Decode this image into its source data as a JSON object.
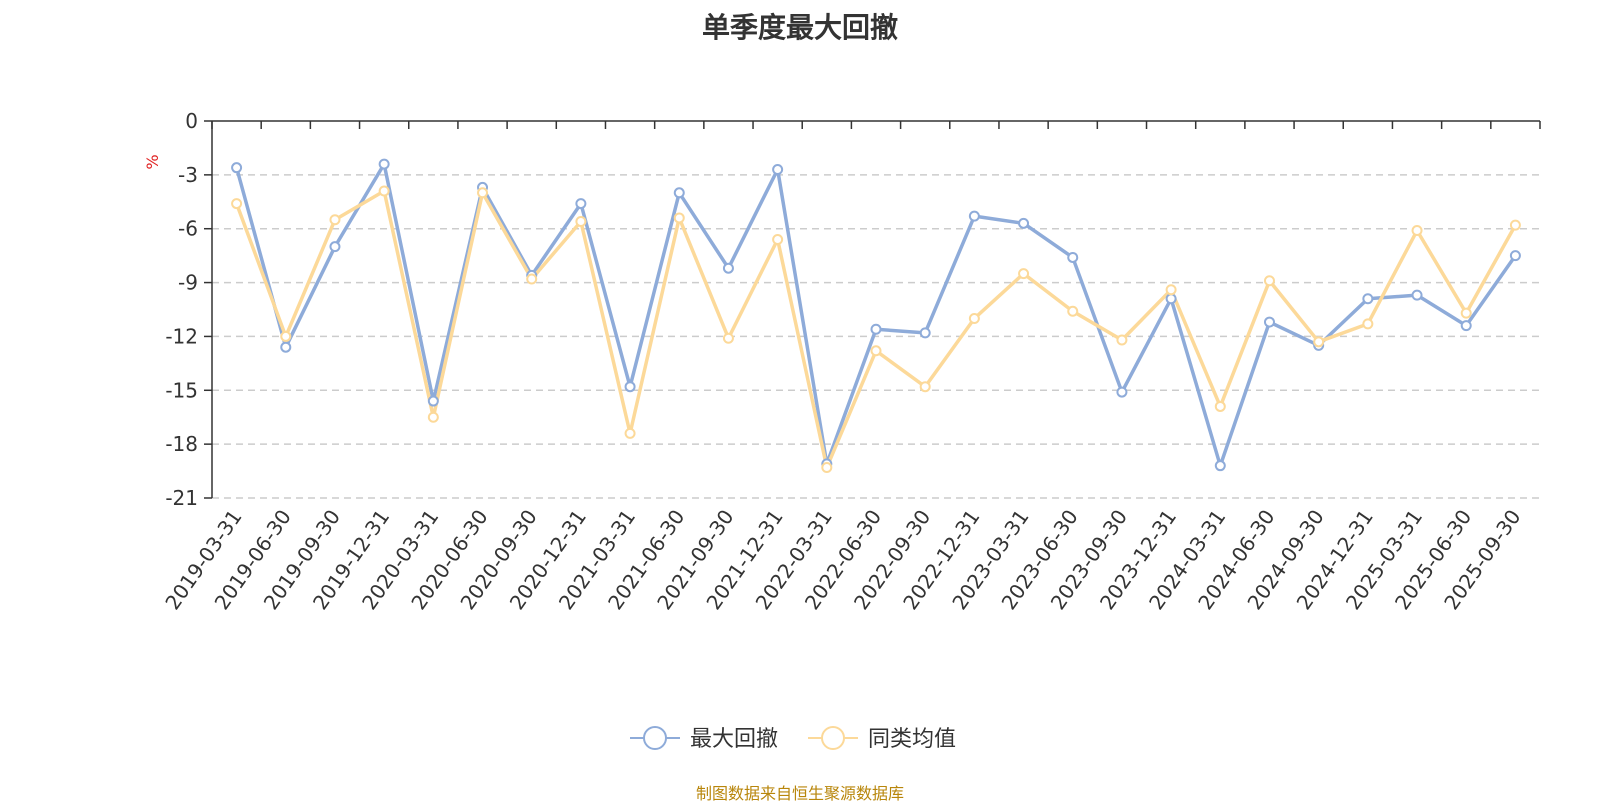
{
  "chart_data": {
    "type": "line",
    "title": "单季度最大回撤",
    "ylabel": "%",
    "ylim": [
      -21,
      0
    ],
    "yticks": [
      0,
      -3,
      -6,
      -9,
      -12,
      -15,
      -18,
      -21
    ],
    "grid": true,
    "legend_position": "bottom-center",
    "categories": [
      "2019-03-31",
      "2019-06-30",
      "2019-09-30",
      "2019-12-31",
      "2020-03-31",
      "2020-06-30",
      "2020-09-30",
      "2020-12-31",
      "2021-03-31",
      "2021-06-30",
      "2021-09-30",
      "2021-12-31",
      "2022-03-31",
      "2022-06-30",
      "2022-09-30",
      "2022-12-31",
      "2023-03-31",
      "2023-06-30",
      "2023-09-30",
      "2023-12-31",
      "2024-03-31",
      "2024-06-30",
      "2024-09-30",
      "2024-12-31",
      "2025-03-31",
      "2025-06-30",
      "2025-09-30"
    ],
    "series": [
      {
        "name": "最大回撤",
        "color": "#8eabd9",
        "values": [
          -2.6,
          -12.6,
          -7.0,
          -2.4,
          -15.6,
          -3.7,
          -8.6,
          -4.6,
          -14.8,
          -4.0,
          -8.2,
          -2.7,
          -19.1,
          -11.6,
          -11.8,
          -5.3,
          -5.7,
          -7.6,
          -15.1,
          -9.9,
          -19.2,
          -11.2,
          -12.5,
          -9.9,
          -9.7,
          -11.4,
          -7.5
        ]
      },
      {
        "name": "同类均值",
        "color": "#fcd999",
        "values": [
          -4.6,
          -12.0,
          -5.5,
          -3.9,
          -16.5,
          -4.0,
          -8.8,
          -5.6,
          -17.4,
          -5.4,
          -12.1,
          -6.6,
          -19.3,
          -12.8,
          -14.8,
          -11.0,
          -8.5,
          -10.6,
          -12.2,
          -9.4,
          -15.9,
          -8.9,
          -12.3,
          -11.3,
          -6.1,
          -10.7,
          -5.8
        ]
      }
    ]
  },
  "footer": {
    "source": "制图数据来自恒生聚源数据库"
  }
}
